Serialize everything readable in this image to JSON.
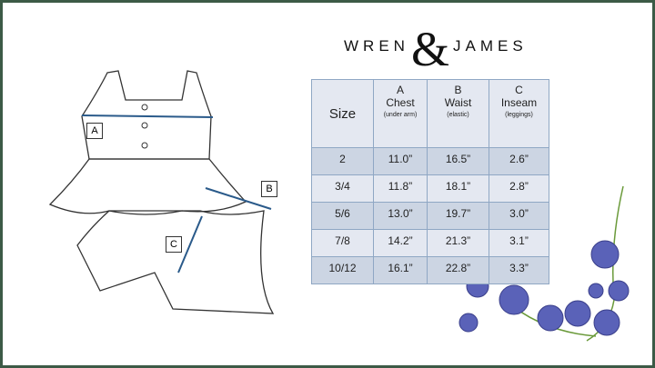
{
  "brand": {
    "left": "WREN",
    "right": "JAMES",
    "ampersand": "&"
  },
  "diagram_labels": {
    "a": "A",
    "b": "B",
    "c": "C"
  },
  "table": {
    "headers": [
      {
        "letter": "",
        "name": "Size",
        "note": ""
      },
      {
        "letter": "A",
        "name": "Chest",
        "note": "(under arm)"
      },
      {
        "letter": "B",
        "name": "Waist",
        "note": "(elastic)"
      },
      {
        "letter": "C",
        "name": "Inseam",
        "note": "(leggings)"
      }
    ],
    "rows": [
      [
        "2",
        "11.0”",
        "16.5”",
        "2.6”"
      ],
      [
        "3/4",
        "11.8”",
        "18.1”",
        "2.8”"
      ],
      [
        "5/6",
        "13.0”",
        "19.7”",
        "3.0”"
      ],
      [
        "7/8",
        "14.2”",
        "21.3”",
        "3.1”"
      ],
      [
        "10/12",
        "16.1”",
        "22.8”",
        "3.3”"
      ]
    ]
  },
  "colors": {
    "border": "#3c5a46",
    "arrow": "#2a5a8a",
    "flower": "#5a62b8",
    "leaf": "#6a9a3a"
  }
}
